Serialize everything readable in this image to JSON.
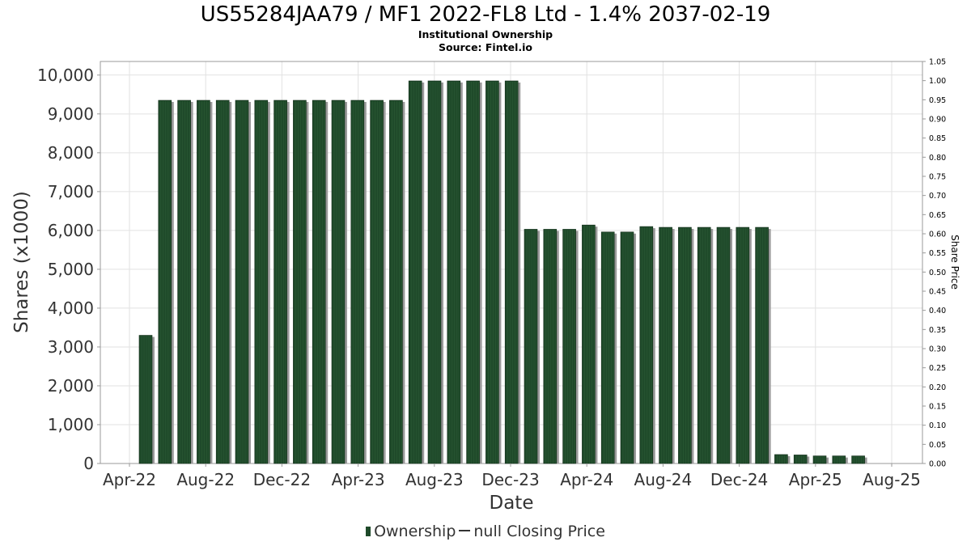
{
  "chart_data": {
    "type": "bar",
    "title": "US55284JAA79 / MF1 2022-FL8 Ltd - 1.4% 2037-02-19",
    "subtitle": "Institutional Ownership",
    "source": "Source: Fintel.io",
    "xlabel": "Date",
    "ylabel": "Shares (x1000)",
    "y2label": "Share Price",
    "ylim": [
      0,
      10350
    ],
    "y2lim": [
      0,
      1.05
    ],
    "yticks": [
      "0",
      "1,000",
      "2,000",
      "3,000",
      "4,000",
      "5,000",
      "6,000",
      "7,000",
      "8,000",
      "9,000",
      "10,000"
    ],
    "y2ticks": [
      "0.00",
      "0.05",
      "0.10",
      "0.15",
      "0.20",
      "0.25",
      "0.30",
      "0.35",
      "0.40",
      "0.45",
      "0.50",
      "0.55",
      "0.60",
      "0.65",
      "0.70",
      "0.75",
      "0.80",
      "0.85",
      "0.90",
      "0.95",
      "1.00",
      "1.05"
    ],
    "xticks": [
      "Apr-22",
      "Aug-22",
      "Dec-22",
      "Apr-23",
      "Aug-23",
      "Dec-23",
      "Apr-24",
      "Aug-24",
      "Dec-24",
      "Apr-25",
      "Aug-25"
    ],
    "grid": true,
    "legend_position": "bottom",
    "series": [
      {
        "name": "Ownership",
        "color": "#1f4a2a",
        "values": [
          3300,
          9350,
          9350,
          9350,
          9350,
          9350,
          9350,
          9350,
          9350,
          9350,
          9350,
          9350,
          9350,
          9350,
          9850,
          9850,
          9850,
          9850,
          9850,
          9850,
          6030,
          6030,
          6030,
          6140,
          5960,
          5960,
          6100,
          6080,
          6080,
          6080,
          6080,
          6080,
          6080,
          230,
          220,
          195,
          195,
          195
        ]
      }
    ],
    "legend": {
      "ownership": "Ownership",
      "closing_price": "null Closing Price"
    }
  }
}
